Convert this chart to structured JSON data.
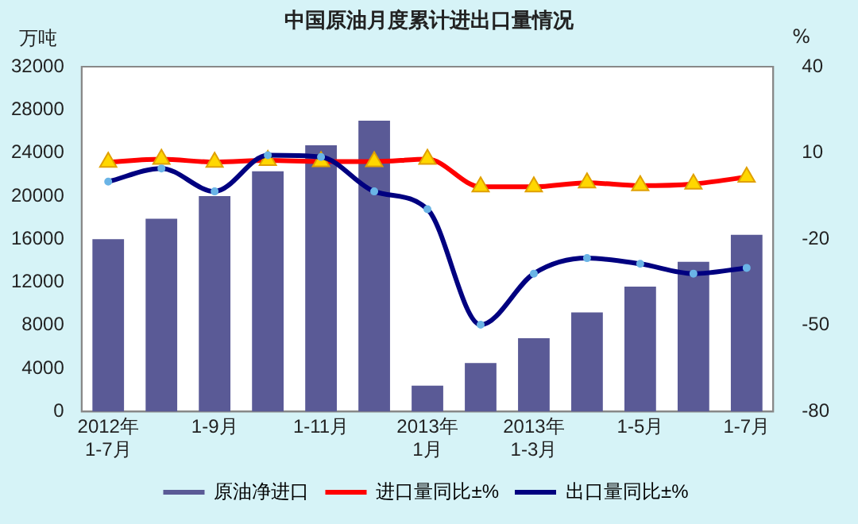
{
  "chart_data": {
    "type": "bar",
    "title": "中国原油月度累计进出口量情况",
    "ylabel": "万吨",
    "y2label": "%",
    "categories": [
      "2012年1-7月",
      null,
      "1-9月",
      null,
      "1-11月",
      null,
      "2013年1月",
      null,
      "2013年1-3月",
      null,
      "1-5月",
      null,
      "1-7月"
    ],
    "series": [
      {
        "name": "原油净进口",
        "color": "#5a5a96",
        "values": [
          16000,
          17900,
          20000,
          22300,
          24700,
          27000,
          2400,
          4500,
          6800,
          9200,
          11600,
          13900,
          16400
        ]
      },
      {
        "name": "进口量同比±%",
        "type": "line",
        "axis": "y2",
        "color": "#ff0000",
        "marker": "triangle",
        "values": [
          6.8,
          7.8,
          6.8,
          7.4,
          7.0,
          7.0,
          7.8,
          -1.8,
          -1.8,
          -0.4,
          -1.4,
          -0.8,
          1.6
        ]
      },
      {
        "name": "出口量同比±%",
        "type": "line",
        "axis": "y2",
        "color": "#000080",
        "marker": "circle",
        "values": [
          0,
          4.6,
          -3.4,
          9.2,
          8.6,
          -3.4,
          -9.6,
          -49.8,
          -32,
          -26.6,
          -28.6,
          -32,
          -30
        ]
      }
    ],
    "ylim": [
      0,
      32000
    ],
    "yticks": [
      0,
      4000,
      8000,
      12000,
      16000,
      20000,
      24000,
      28000,
      32000
    ],
    "y2lim": [
      -80,
      40
    ],
    "y2ticks": [
      -80,
      -50,
      -20,
      10,
      40
    ],
    "grid": false,
    "legend": "bottom"
  }
}
